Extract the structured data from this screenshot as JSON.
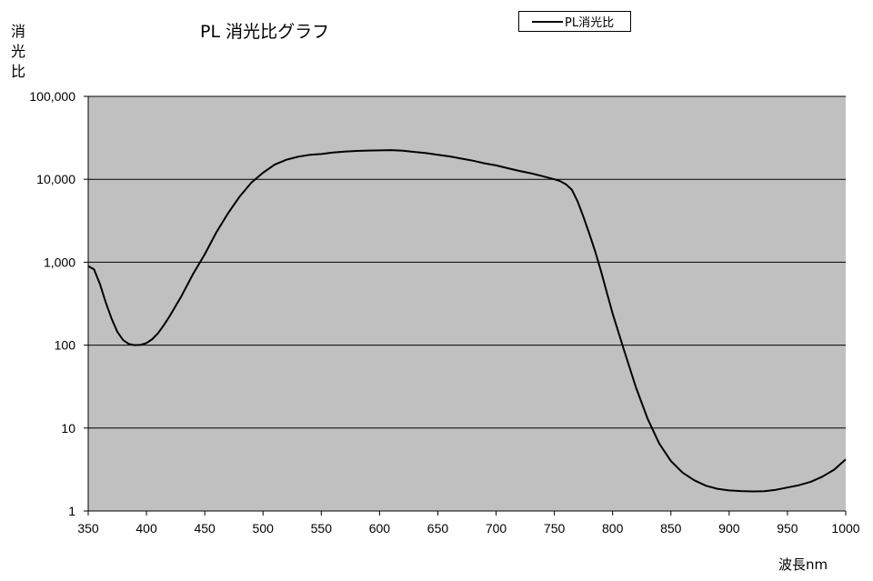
{
  "chart_data": {
    "type": "line",
    "title": "PL 消光比グラフ",
    "xlabel": "波長nm",
    "ylabel": [
      "消",
      "光",
      "比"
    ],
    "xlim": [
      350,
      1000
    ],
    "ylim": [
      1,
      100000
    ],
    "y_scale": "log",
    "grid": "horizontal",
    "legend": "top-center",
    "xticks": [
      "350",
      "400",
      "450",
      "500",
      "550",
      "600",
      "650",
      "700",
      "750",
      "800",
      "850",
      "900",
      "950",
      "1000"
    ],
    "yticks": [
      "1",
      "10",
      "100",
      "1,000",
      "10,000",
      "100,000"
    ],
    "colors": {
      "plot_bg": "#c0c0c0",
      "line": "#000000"
    },
    "series": [
      {
        "name": "PL消光比",
        "x": [
          350,
          355,
          360,
          365,
          370,
          375,
          380,
          385,
          390,
          395,
          400,
          405,
          410,
          415,
          420,
          430,
          440,
          450,
          460,
          470,
          480,
          490,
          500,
          510,
          520,
          530,
          540,
          550,
          560,
          570,
          580,
          590,
          600,
          610,
          620,
          630,
          640,
          650,
          660,
          670,
          680,
          690,
          700,
          710,
          720,
          730,
          740,
          750,
          755,
          760,
          765,
          770,
          775,
          780,
          785,
          790,
          795,
          800,
          810,
          820,
          830,
          840,
          850,
          860,
          870,
          880,
          890,
          900,
          910,
          920,
          930,
          940,
          950,
          960,
          970,
          980,
          990,
          1000
        ],
        "y": [
          900,
          820,
          550,
          330,
          210,
          145,
          115,
          103,
          100,
          101,
          106,
          118,
          140,
          175,
          225,
          390,
          720,
          1250,
          2300,
          3900,
          6200,
          9100,
          12000,
          15000,
          17200,
          18700,
          19700,
          20200,
          21000,
          21600,
          22000,
          22200,
          22300,
          22500,
          22100,
          21400,
          20700,
          19700,
          18900,
          17800,
          16800,
          15600,
          14700,
          13600,
          12600,
          11800,
          10900,
          10000,
          9500,
          8700,
          7500,
          5400,
          3500,
          2200,
          1350,
          780,
          430,
          240,
          85,
          31,
          13,
          6.5,
          4.0,
          2.9,
          2.35,
          2.02,
          1.85,
          1.77,
          1.74,
          1.72,
          1.73,
          1.8,
          1.92,
          2.05,
          2.25,
          2.6,
          3.15,
          4.2
        ]
      }
    ]
  }
}
